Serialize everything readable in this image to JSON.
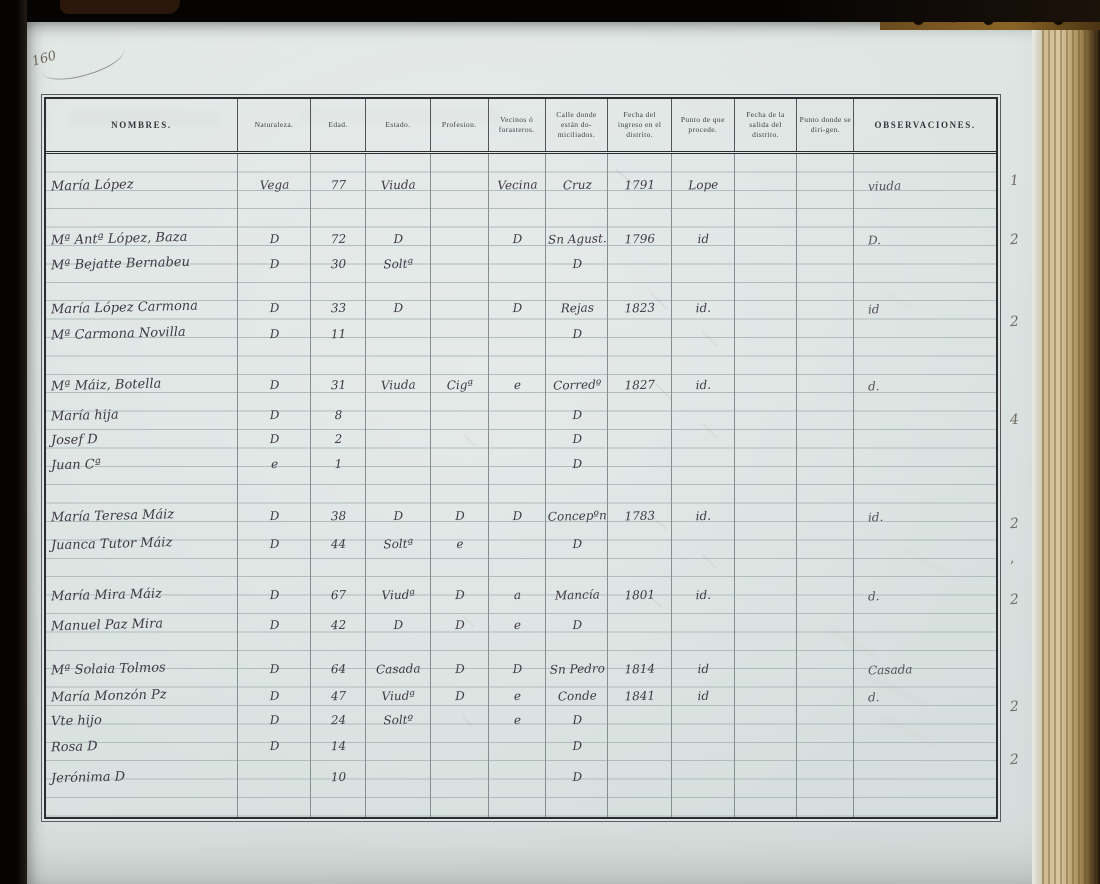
{
  "page": {
    "folio": "160",
    "table": {
      "columns": [
        "NOMBRES.",
        "Naturaleza.",
        "Edad.",
        "Estado.",
        "Profesion.",
        "Vecinos ó forasteros.",
        "Calle donde están do-miciliados.",
        "Fecha del ingreso en el distrito.",
        "Punto de que procede.",
        "Fecha de la salida del distrito.",
        "Punto donde se diri-gen.",
        "OBSERVACIONES."
      ],
      "rows": [
        {
          "line": 2.0,
          "cells": [
            "María López",
            "Vega",
            "77",
            "Viuda",
            "",
            "Vecina",
            "Cruz",
            "1791",
            "Lope",
            "",
            "",
            "viuda"
          ]
        },
        {
          "line": 4.95,
          "cells": [
            "Mª Antª López, Baza",
            "D",
            "72",
            "D",
            "",
            "D",
            "Sn Agust.",
            "1796",
            "id",
            "",
            "",
            "D."
          ]
        },
        {
          "line": 6.3,
          "cells": [
            "Mª Bejatte Bernabeu",
            "D",
            "30",
            "Soltª",
            "",
            "",
            "D",
            "",
            "",
            "",
            "",
            ""
          ]
        },
        {
          "line": 8.7,
          "cells": [
            "María López Carmona",
            "D",
            "33",
            "D",
            "",
            "D",
            "Rejas",
            "1823",
            "id.",
            "",
            "",
            "id"
          ]
        },
        {
          "line": 10.1,
          "cells": [
            "Mª Carmona Novilla",
            "D",
            "11",
            "",
            "",
            "",
            "D",
            "",
            "",
            "",
            "",
            ""
          ]
        },
        {
          "line": 12.9,
          "cells": [
            "Mª Máiz, Botella",
            "D",
            "31",
            "Viuda",
            "Cigª",
            "e",
            "Corredº",
            "1827",
            "id.",
            "",
            "",
            "d."
          ]
        },
        {
          "line": 14.5,
          "cells": [
            "María   hija",
            "D",
            "8",
            "",
            "",
            "",
            "D",
            "",
            "",
            "",
            "",
            ""
          ]
        },
        {
          "line": 15.8,
          "cells": [
            "Josef   D",
            "D",
            "2",
            "",
            "",
            "",
            "D",
            "",
            "",
            "",
            "",
            ""
          ]
        },
        {
          "line": 17.2,
          "cells": [
            "Juan Cª",
            "e",
            "1",
            "",
            "",
            "",
            "D",
            "",
            "",
            "",
            "",
            ""
          ]
        },
        {
          "line": 20.0,
          "cells": [
            "María Teresa Máiz",
            "D",
            "38",
            "D",
            "D",
            "D",
            "Concepºn",
            "1783",
            "id.",
            "",
            "",
            "id."
          ]
        },
        {
          "line": 21.5,
          "cells": [
            "Juanca Tutor Máiz",
            "D",
            "44",
            "Soltª",
            "e",
            "",
            "D",
            "",
            "",
            "",
            "",
            ""
          ]
        },
        {
          "line": 24.3,
          "cells": [
            "María Mira Máiz",
            "D",
            "67",
            "Viudª",
            "D",
            "a",
            "Mancía",
            "1801",
            "id.",
            "",
            "",
            "d."
          ]
        },
        {
          "line": 25.9,
          "cells": [
            "Manuel Paz Mira",
            "D",
            "42",
            "D",
            "D",
            "e",
            "D",
            "",
            "",
            "",
            "",
            ""
          ]
        },
        {
          "line": 28.3,
          "cells": [
            "Mª Solaia Tolmos",
            "D",
            "64",
            "Casada",
            "D",
            "D",
            "Sn Pedro",
            "1814",
            "id",
            "",
            "",
            "Casada"
          ]
        },
        {
          "line": 29.8,
          "cells": [
            "María Monzón Pz",
            "D",
            "47",
            "Viudª",
            "D",
            "e",
            "Conde",
            "1841",
            "id",
            "",
            "",
            "d."
          ]
        },
        {
          "line": 31.1,
          "cells": [
            "Vte  hijo",
            "D",
            "24",
            "Soltº",
            "",
            "e",
            "D",
            "",
            "",
            "",
            "",
            ""
          ]
        },
        {
          "line": 32.5,
          "cells": [
            "Rosa  D",
            "D",
            "14",
            "",
            "",
            "",
            "D",
            "",
            "",
            "",
            "",
            ""
          ]
        },
        {
          "line": 34.2,
          "cells": [
            "Jerónima  D",
            "",
            "10",
            "",
            "",
            "",
            "D",
            "",
            "",
            "",
            "",
            ""
          ]
        }
      ],
      "margin_marks": [
        {
          "label": "1",
          "line": 2.0
        },
        {
          "label": "2",
          "line": 5.2
        },
        {
          "label": "2",
          "line": 9.7
        },
        {
          "label": "4",
          "line": 15.0
        },
        {
          "label": "2",
          "line": 20.65
        },
        {
          "label": "’",
          "line": 23.0
        },
        {
          "label": "2",
          "line": 24.8
        },
        {
          "label": "2",
          "line": 30.6
        },
        {
          "label": "2",
          "line": 33.5
        }
      ]
    }
  }
}
